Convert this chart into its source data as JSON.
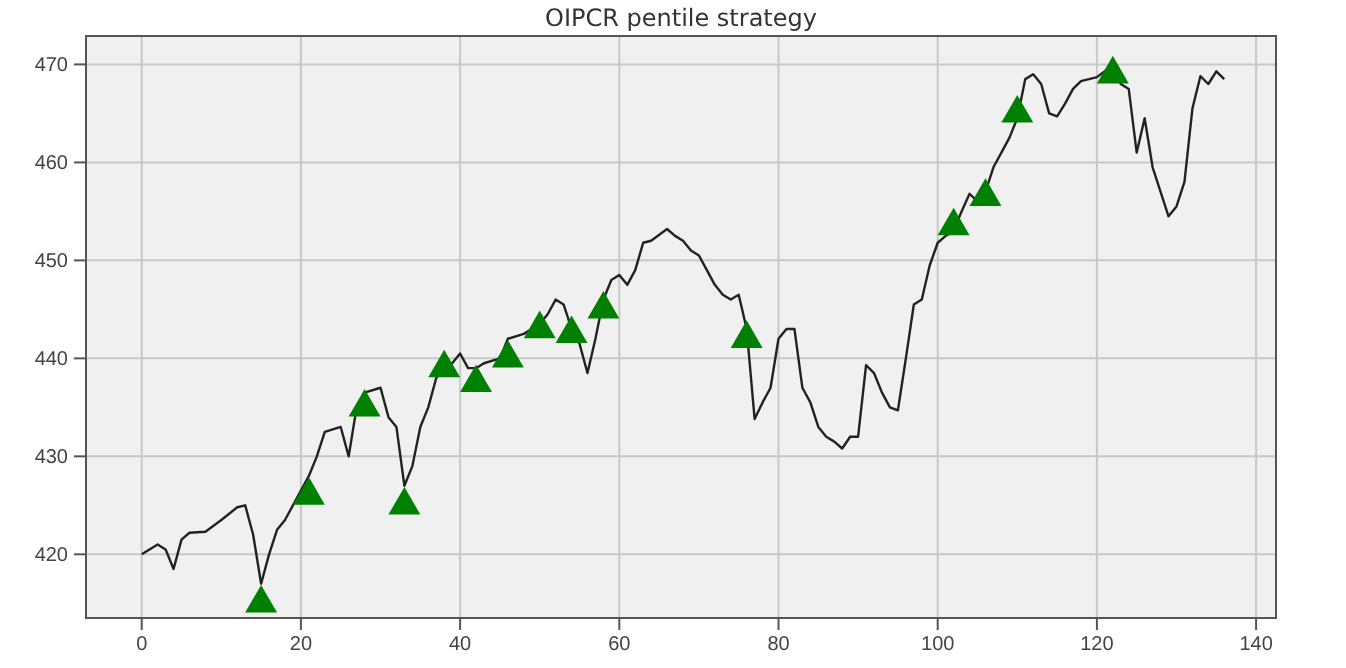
{
  "chart_data": {
    "type": "line",
    "title": "OIPCR pentile strategy",
    "xlim": [
      -7,
      142.5
    ],
    "xticks": [
      0,
      20,
      40,
      60,
      80,
      100,
      120,
      140
    ],
    "ylim": [
      413.5,
      472.9
    ],
    "yticks": [
      420,
      430,
      440,
      450,
      460,
      470
    ],
    "grid": true,
    "series": [
      {
        "color": "#222222",
        "marker": "none",
        "x": [
          0,
          2,
          3,
          4,
          5,
          6,
          8,
          10,
          12,
          13,
          14,
          15,
          16,
          17,
          18,
          20,
          21,
          22,
          23,
          25,
          26,
          27,
          28,
          30,
          31,
          32,
          33,
          34,
          35,
          36,
          37,
          38,
          39,
          40,
          41,
          42,
          43,
          45,
          46,
          48,
          50,
          51,
          52,
          53,
          54,
          55,
          56,
          57,
          58,
          59,
          60,
          61,
          62,
          63,
          64,
          66,
          67,
          68,
          69,
          70,
          71,
          72,
          73,
          74,
          75,
          76,
          77,
          78,
          79,
          80,
          81,
          82,
          83,
          84,
          85,
          86,
          87,
          88,
          89,
          90,
          91,
          92,
          93,
          94,
          95,
          96,
          97,
          98,
          99,
          100,
          101,
          102,
          103,
          104,
          105,
          106,
          107,
          108,
          109,
          110,
          111,
          112,
          113,
          114,
          115,
          116,
          117,
          118,
          119,
          120,
          121,
          122,
          123,
          124,
          125,
          126,
          127,
          128,
          129,
          130,
          131,
          132,
          133,
          134,
          135,
          136
        ],
        "values": [
          420,
          421,
          420.5,
          418.5,
          421.5,
          422.2,
          422.3,
          423.5,
          424.8,
          425,
          422,
          417,
          420,
          422.5,
          423.5,
          426.5,
          428,
          430,
          432.5,
          433,
          430,
          435,
          436.5,
          437,
          434,
          433,
          427,
          429,
          433,
          435,
          438,
          439,
          439.5,
          440.5,
          439,
          439,
          439.5,
          440,
          442,
          442.5,
          443.5,
          444.5,
          446,
          445.5,
          443,
          441.5,
          438.5,
          442,
          446,
          448,
          448.5,
          447.5,
          449,
          451.8,
          452,
          453.2,
          452.5,
          452,
          451,
          450.5,
          449,
          447.5,
          446.5,
          446,
          446.5,
          443,
          433.8,
          435.5,
          437,
          442,
          443,
          443,
          437,
          435.5,
          433,
          432,
          431.5,
          430.8,
          432,
          432,
          439.3,
          438.5,
          436.5,
          435,
          434.7,
          440,
          445.5,
          446,
          449.5,
          451.8,
          452.5,
          453,
          455,
          456.8,
          456,
          457,
          459.5,
          461,
          462.5,
          464.5,
          468.5,
          469,
          468,
          465,
          464.7,
          466,
          467.5,
          468.3,
          468.5,
          468.7,
          469.3,
          470,
          468,
          467.5,
          461,
          464.5,
          459.5,
          457,
          454.5,
          455.5,
          458,
          465.5,
          468.8,
          468,
          469.3,
          468.5
        ]
      },
      {
        "type": "scatter",
        "color": "#008000",
        "marker": "triangle",
        "x": [
          15,
          21,
          28,
          33,
          38,
          42,
          46,
          50,
          54,
          58,
          76,
          102,
          106,
          110,
          122
        ],
        "values": [
          415,
          426,
          435,
          425,
          439,
          437.5,
          440,
          443,
          442.5,
          445,
          442,
          453.5,
          456.5,
          465,
          469
        ]
      }
    ]
  }
}
